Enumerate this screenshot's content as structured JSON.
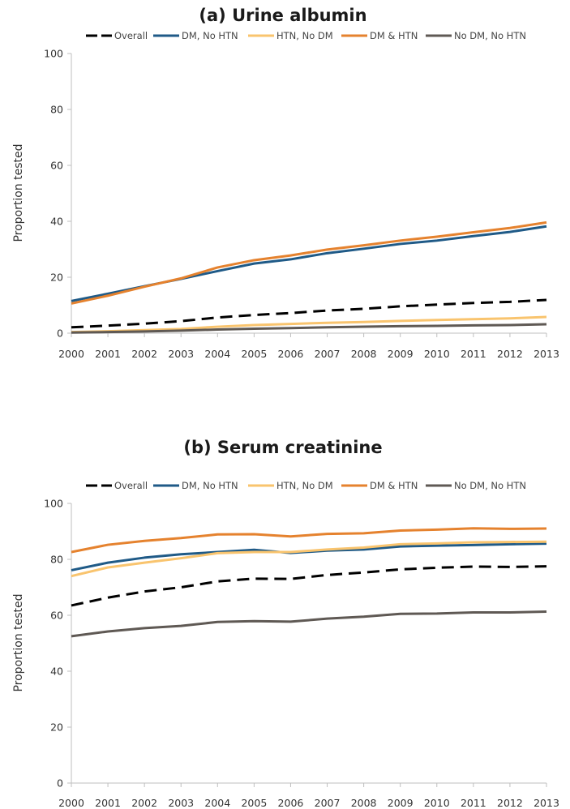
{
  "chart_data": [
    {
      "type": "line",
      "title": "(a) Urine albumin",
      "ylabel": "Proportion tested",
      "xlabel": "",
      "ylim": [
        0,
        100
      ],
      "yticks": [
        0,
        20,
        40,
        60,
        80,
        100
      ],
      "grid": false,
      "legend_position": "top",
      "x": [
        2000,
        2001,
        2002,
        2003,
        2004,
        2005,
        2006,
        2007,
        2008,
        2009,
        2010,
        2011,
        2012,
        2013
      ],
      "series": [
        {
          "name": "Overall",
          "color": "#000000",
          "dash": "dashed",
          "values": [
            2.1,
            2.7,
            3.4,
            4.3,
            5.6,
            6.5,
            7.2,
            8.1,
            8.7,
            9.6,
            10.2,
            10.8,
            11.2,
            11.9
          ]
        },
        {
          "name": "DM, No HTN",
          "color": "#1f5a87",
          "dash": "solid",
          "values": [
            11.5,
            14.1,
            16.8,
            19.4,
            22.2,
            24.9,
            26.4,
            28.6,
            30.2,
            31.9,
            33.1,
            34.7,
            36.2,
            38.2
          ]
        },
        {
          "name": "HTN, No DM",
          "color": "#f9c46e",
          "dash": "solid",
          "values": [
            0.4,
            0.7,
            1.1,
            1.5,
            2.3,
            2.9,
            3.3,
            3.7,
            4.0,
            4.4,
            4.7,
            5.0,
            5.3,
            5.8
          ]
        },
        {
          "name": "DM & HTN",
          "color": "#e5822e",
          "dash": "solid",
          "values": [
            10.6,
            13.4,
            16.6,
            19.6,
            23.5,
            26.1,
            27.8,
            29.9,
            31.4,
            33.1,
            34.5,
            36.1,
            37.6,
            39.6
          ]
        },
        {
          "name": "No DM, No HTN",
          "color": "#5f5954",
          "dash": "solid",
          "values": [
            0.2,
            0.4,
            0.6,
            0.9,
            1.3,
            1.6,
            1.8,
            2.1,
            2.3,
            2.5,
            2.6,
            2.8,
            2.9,
            3.2
          ]
        }
      ]
    },
    {
      "type": "line",
      "title": "(b) Serum creatinine",
      "ylabel": "Proportion tested",
      "xlabel": "",
      "ylim": [
        0,
        100
      ],
      "yticks": [
        0,
        20,
        40,
        60,
        80,
        100
      ],
      "grid": false,
      "legend_position": "top",
      "x": [
        2000,
        2001,
        2002,
        2003,
        2004,
        2005,
        2006,
        2007,
        2008,
        2009,
        2010,
        2011,
        2012,
        2013
      ],
      "series": [
        {
          "name": "Overall",
          "color": "#000000",
          "dash": "dashed",
          "values": [
            63.5,
            66.3,
            68.5,
            70.0,
            72.1,
            73.1,
            73.0,
            74.4,
            75.3,
            76.4,
            77.0,
            77.4,
            77.3,
            77.5
          ]
        },
        {
          "name": "DM, No HTN",
          "color": "#1f5a87",
          "dash": "solid",
          "values": [
            76.1,
            78.8,
            80.6,
            81.8,
            82.6,
            83.4,
            82.3,
            83.1,
            83.5,
            84.6,
            84.9,
            85.1,
            85.4,
            85.6
          ]
        },
        {
          "name": "HTN, No DM",
          "color": "#f9c46e",
          "dash": "solid",
          "values": [
            74.0,
            77.1,
            78.8,
            80.4,
            82.2,
            82.6,
            82.6,
            83.5,
            84.2,
            85.4,
            85.7,
            86.1,
            86.2,
            86.3
          ]
        },
        {
          "name": "DM & HTN",
          "color": "#e5822e",
          "dash": "solid",
          "values": [
            82.6,
            85.2,
            86.6,
            87.6,
            88.9,
            89.0,
            88.2,
            89.1,
            89.3,
            90.3,
            90.6,
            91.1,
            90.9,
            91.0
          ]
        },
        {
          "name": "No DM, No HTN",
          "color": "#5f5954",
          "dash": "solid",
          "values": [
            52.5,
            54.2,
            55.4,
            56.2,
            57.6,
            57.9,
            57.7,
            58.8,
            59.5,
            60.5,
            60.6,
            61.0,
            61.0,
            61.3
          ]
        }
      ]
    }
  ]
}
